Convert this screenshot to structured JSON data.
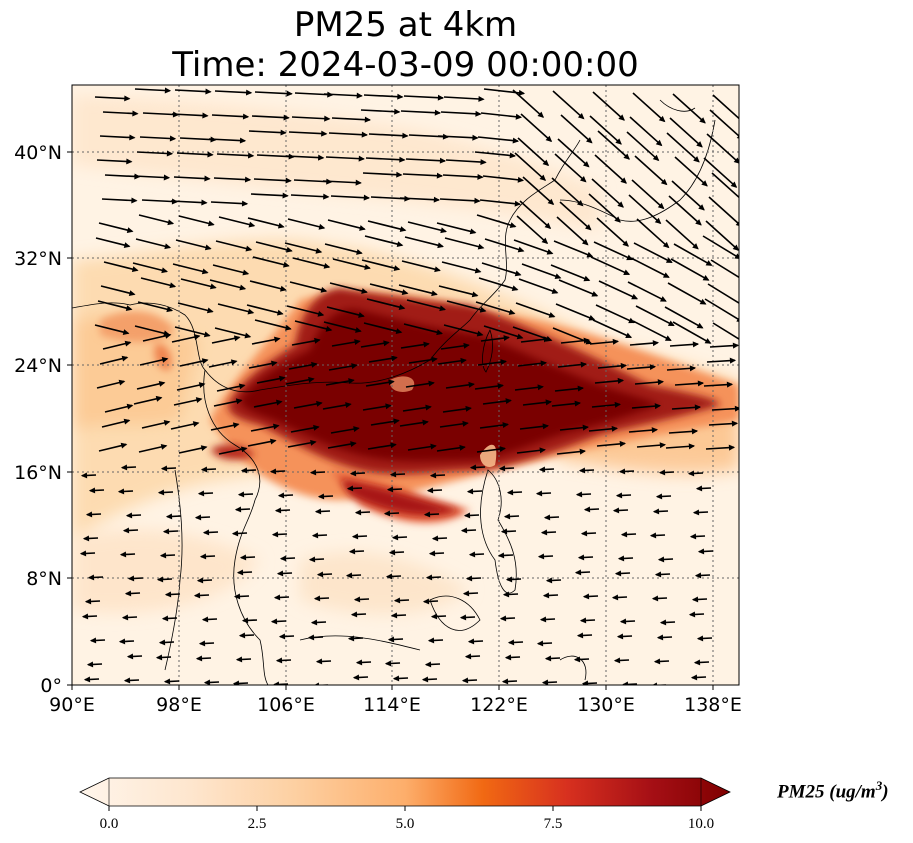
{
  "title_line1": "PM25 at 4km",
  "title_line2": "Time: 2024-03-09 00:00:00",
  "map": {
    "lon_range": [
      90,
      140
    ],
    "lat_range": [
      0,
      45
    ],
    "x_ticks": [
      "90°E",
      "98°E",
      "106°E",
      "114°E",
      "122°E",
      "130°E",
      "138°E"
    ],
    "y_ticks": [
      "0°",
      "8°N",
      "16°N",
      "24°N",
      "32°N",
      "40°N"
    ],
    "gridlines": true
  },
  "colorbar": {
    "label": "PM25 (ug/m",
    "label_sup": "3",
    "label_close": ")",
    "ticks": [
      "0.0",
      "2.5",
      "5.0",
      "7.5",
      "10.0"
    ],
    "min": 0,
    "max": 10,
    "colors": [
      "#fff5eb",
      "#fdd49e",
      "#fdae6b",
      "#f16913",
      "#d7301f",
      "#a50f15",
      "#7f0000"
    ]
  }
}
